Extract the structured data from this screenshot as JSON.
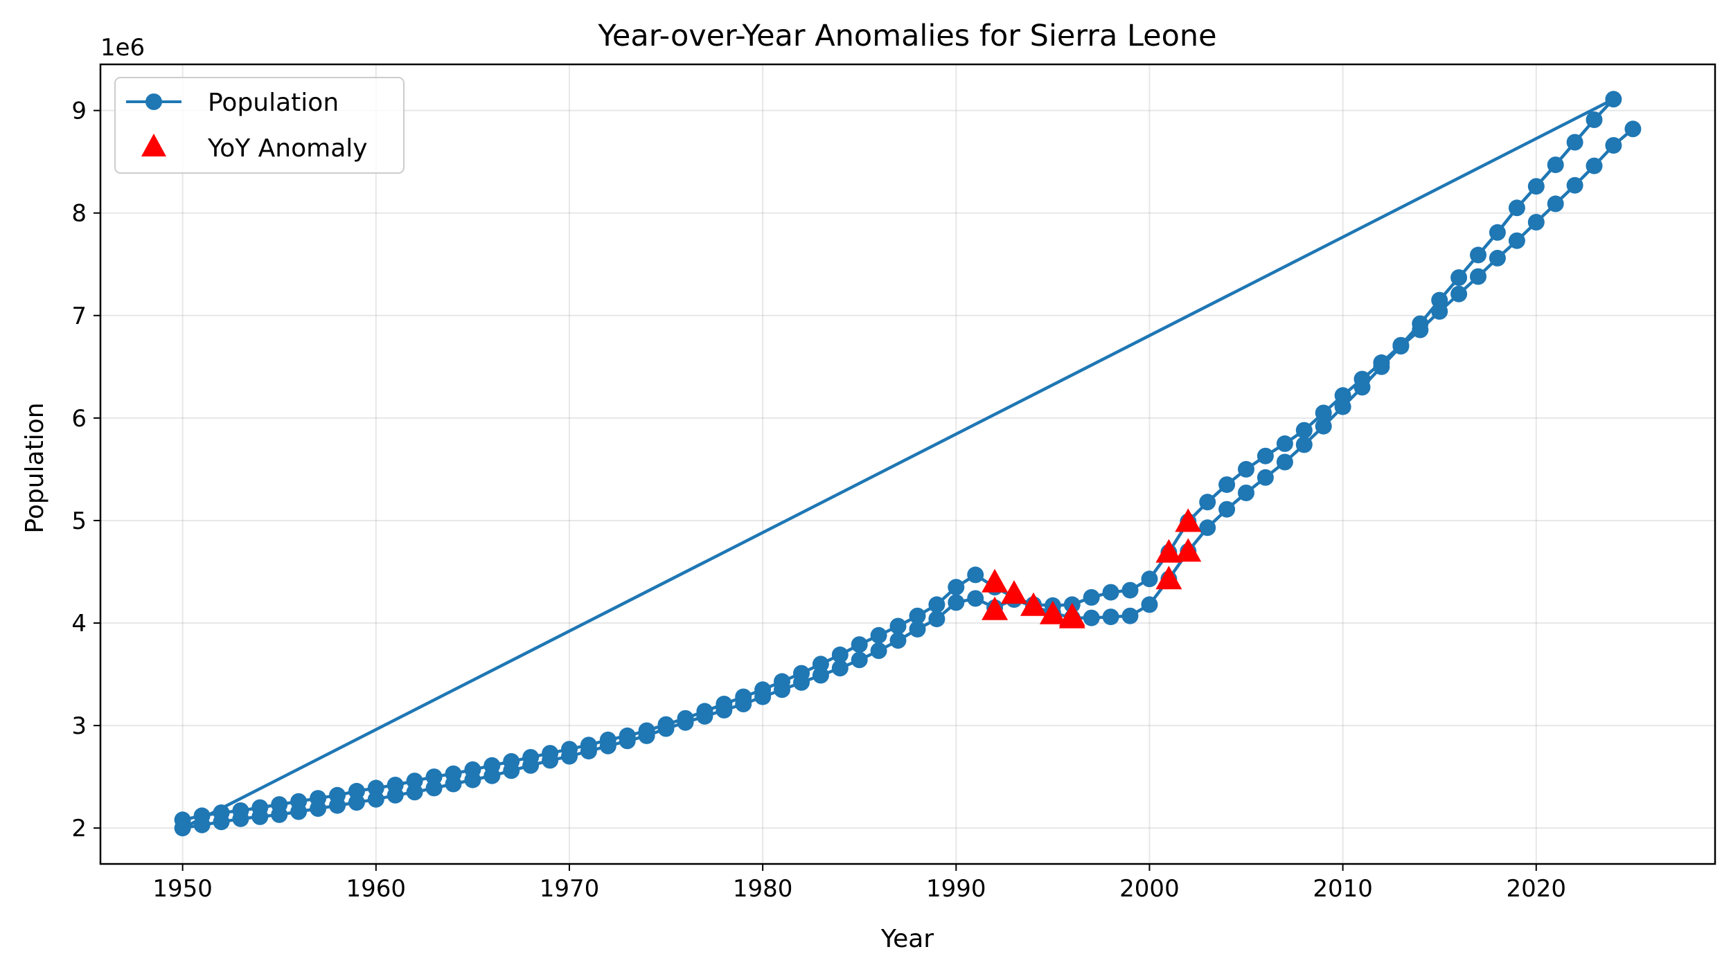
{
  "chart_data": {
    "type": "line",
    "title": "Year-over-Year Anomalies for Sierra Leone",
    "xlabel": "Year",
    "ylabel": "Population",
    "y_offset_label": "1e6",
    "xlim": [
      1945.75,
      2029.25
    ],
    "ylim": [
      1650000,
      9450000
    ],
    "xticks": [
      1950,
      1960,
      1970,
      1980,
      1990,
      2000,
      2010,
      2020
    ],
    "yticks": [
      2000000,
      3000000,
      4000000,
      5000000,
      6000000,
      7000000,
      8000000,
      9000000
    ],
    "ytick_labels": [
      "2",
      "3",
      "4",
      "5",
      "6",
      "7",
      "8",
      "9"
    ],
    "grid": true,
    "legend_position": "top-left",
    "colors": {
      "line": "#1f77b4",
      "anomaly": "#ff0000"
    },
    "series": [
      {
        "name": "Population",
        "style": "line-marker",
        "x": [
          1950,
          1951,
          1952,
          1953,
          1954,
          1955,
          1956,
          1957,
          1958,
          1959,
          1960,
          1961,
          1962,
          1963,
          1964,
          1965,
          1966,
          1967,
          1968,
          1969,
          1970,
          1971,
          1972,
          1973,
          1974,
          1975,
          1976,
          1977,
          1978,
          1979,
          1980,
          1981,
          1982,
          1983,
          1984,
          1985,
          1986,
          1987,
          1988,
          1989,
          1990,
          1991,
          1992,
          1993,
          1994,
          1995,
          1996,
          1997,
          1998,
          1999,
          2000,
          2001,
          2002,
          2003,
          2004,
          2005,
          2006,
          2007,
          2008,
          2009,
          2010,
          2011,
          2012,
          2013,
          2014,
          2015,
          2016,
          2017,
          2018,
          2019,
          2020,
          2021,
          2022,
          2023,
          2024,
          1950,
          1951,
          1952,
          1953,
          1954,
          1955,
          1956,
          1957,
          1958,
          1959,
          1960,
          1961,
          1962,
          1963,
          1964,
          1965,
          1966,
          1967,
          1968,
          1969,
          1970,
          1971,
          1972,
          1973,
          1974,
          1975,
          1976,
          1977,
          1978,
          1979,
          1980,
          1981,
          1982,
          1983,
          1984,
          1985,
          1986,
          1987,
          1988,
          1989,
          1990,
          1991,
          1992,
          1993,
          1994,
          1995,
          1996,
          1997,
          1998,
          1999,
          2000,
          2001,
          2002,
          2003,
          2004,
          2005,
          2006,
          2007,
          2008,
          2009,
          2010,
          2011,
          2012,
          2013,
          2014,
          2015,
          2016,
          2017,
          2018,
          2019,
          2020,
          2021,
          2022,
          2023,
          2024,
          2025
        ],
        "y": [
          2080000,
          2120000,
          2150000,
          2170000,
          2200000,
          2230000,
          2260000,
          2290000,
          2320000,
          2360000,
          2390000,
          2420000,
          2460000,
          2500000,
          2530000,
          2570000,
          2610000,
          2650000,
          2690000,
          2730000,
          2770000,
          2810000,
          2860000,
          2900000,
          2950000,
          3010000,
          3070000,
          3140000,
          3210000,
          3280000,
          3350000,
          3430000,
          3510000,
          3600000,
          3690000,
          3790000,
          3880000,
          3970000,
          4070000,
          4180000,
          4350000,
          4470000,
          4350000,
          4250000,
          4180000,
          4170000,
          4180000,
          4250000,
          4300000,
          4320000,
          4430000,
          4690000,
          4990000,
          5180000,
          5350000,
          5500000,
          5630000,
          5750000,
          5880000,
          6050000,
          6220000,
          6380000,
          6540000,
          6710000,
          6920000,
          7150000,
          7370000,
          7590000,
          7810000,
          8050000,
          8260000,
          8470000,
          8690000,
          8910000,
          9110000,
          2000000,
          2030000,
          2060000,
          2090000,
          2110000,
          2130000,
          2160000,
          2190000,
          2220000,
          2250000,
          2280000,
          2320000,
          2350000,
          2390000,
          2430000,
          2470000,
          2510000,
          2560000,
          2610000,
          2660000,
          2700000,
          2750000,
          2800000,
          2850000,
          2900000,
          2970000,
          3030000,
          3090000,
          3150000,
          3210000,
          3280000,
          3350000,
          3420000,
          3490000,
          3560000,
          3640000,
          3730000,
          3830000,
          3940000,
          4040000,
          4200000,
          4240000,
          4150000,
          4230000,
          4160000,
          4100000,
          4050000,
          4050000,
          4060000,
          4070000,
          4180000,
          4430000,
          4700000,
          4930000,
          5110000,
          5270000,
          5420000,
          5570000,
          5740000,
          5920000,
          6110000,
          6300000,
          6500000,
          6700000,
          6860000,
          7040000,
          7210000,
          7380000,
          7560000,
          7730000,
          7910000,
          8090000,
          8270000,
          8460000,
          8660000,
          8820000
        ]
      },
      {
        "name": "YoY Anomaly",
        "style": "triangle",
        "x": [
          1992,
          1992,
          1993,
          1994,
          1995,
          1996,
          1996,
          2001,
          2001,
          2002,
          2002
        ],
        "y": [
          4400000,
          4130000,
          4290000,
          4170000,
          4090000,
          4070000,
          4050000,
          4690000,
          4430000,
          4990000,
          4700000
        ]
      }
    ]
  }
}
